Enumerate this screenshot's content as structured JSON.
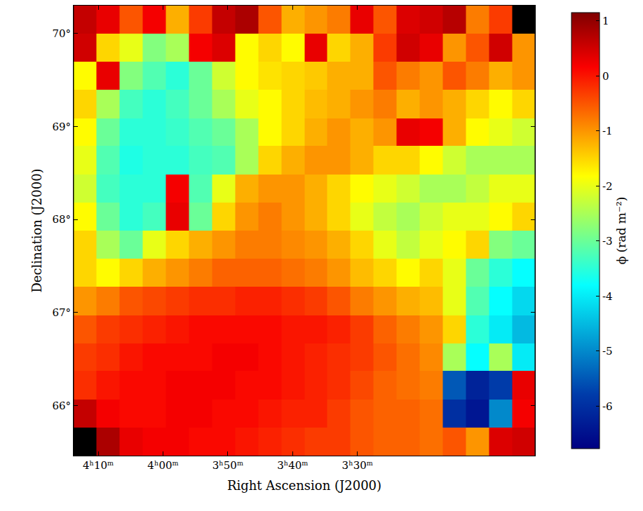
{
  "chart_data": {
    "type": "heatmap",
    "x_label": "Right Ascension (J2000)",
    "y_label": "Declination (J2000)",
    "colorbar_label": "ϕ (rad m⁻²)",
    "x": [
      252.0,
      248.5,
      244.9,
      241.3,
      237.8,
      234.2,
      230.7,
      227.1,
      223.5,
      220.0,
      216.4,
      212.9,
      209.3,
      205.7,
      202.2,
      198.6,
      195.1,
      191.5,
      187.9,
      184.4
    ],
    "y": [
      65.61,
      65.91,
      66.22,
      66.52,
      66.82,
      67.12,
      67.43,
      67.73,
      68.03,
      68.33,
      68.64,
      68.94,
      69.24,
      69.55,
      69.85,
      70.15
    ],
    "z": [
      [
        null,
        0.8,
        0.3,
        0.2,
        0.2,
        0.1,
        0.1,
        0.0,
        -0.1,
        -0.2,
        -0.3,
        -0.3,
        -0.5,
        -0.6,
        -0.6,
        -0.7,
        -0.5,
        -1.0,
        0.4,
        0.5
      ],
      [
        0.6,
        0.2,
        0.1,
        0.1,
        0.2,
        0.2,
        0.1,
        0.1,
        0.0,
        -0.1,
        -0.1,
        -0.3,
        -0.5,
        -0.6,
        -0.6,
        -0.7,
        -6.0,
        -6.4,
        -5.0,
        0.2
      ],
      [
        -0.2,
        0.0,
        0.1,
        0.1,
        0.2,
        0.2,
        0.2,
        0.1,
        0.1,
        0.0,
        -0.1,
        -0.2,
        -0.4,
        -0.6,
        -0.7,
        -0.8,
        -5.5,
        -6.2,
        -5.8,
        0.3
      ],
      [
        -0.3,
        -0.2,
        0.0,
        0.1,
        0.1,
        0.1,
        0.2,
        0.2,
        0.1,
        0.0,
        -0.1,
        -0.2,
        -0.3,
        -0.5,
        -0.7,
        -0.9,
        -2.5,
        -3.8,
        -2.5,
        -4.0
      ],
      [
        -0.5,
        -0.3,
        -0.2,
        -0.1,
        0.0,
        0.1,
        0.1,
        0.1,
        0.1,
        0.0,
        0.0,
        -0.1,
        -0.3,
        -0.6,
        -0.8,
        -1.0,
        -1.5,
        -3.5,
        -4.0,
        -4.5
      ],
      [
        -1.0,
        -0.8,
        -0.5,
        -0.4,
        -0.3,
        -0.2,
        -0.2,
        -0.1,
        -0.1,
        -0.2,
        -0.3,
        -0.5,
        -0.8,
        -1.0,
        -1.2,
        -1.3,
        -2.0,
        -3.2,
        -3.8,
        -4.2
      ],
      [
        -1.5,
        -1.8,
        -1.5,
        -1.2,
        -1.0,
        -0.8,
        -0.6,
        -0.6,
        -0.6,
        -0.7,
        -0.8,
        -1.0,
        -1.3,
        -1.5,
        -1.8,
        -1.5,
        -2.0,
        -3.0,
        -3.5,
        -3.8
      ],
      [
        -1.5,
        -2.5,
        -3.0,
        -2.0,
        -1.5,
        -1.2,
        -1.0,
        -0.8,
        -0.8,
        -0.9,
        -1.0,
        -1.2,
        -1.5,
        -2.0,
        -2.3,
        -2.0,
        -1.8,
        -1.5,
        -2.8,
        -3.0
      ],
      [
        -1.8,
        -3.0,
        -3.5,
        -3.3,
        0.3,
        -3.0,
        -1.5,
        -1.0,
        -0.8,
        -1.0,
        -1.2,
        -1.5,
        -2.0,
        -2.3,
        -2.5,
        -2.2,
        -2.0,
        -2.0,
        -1.8,
        -1.5
      ],
      [
        -2.2,
        -3.3,
        -3.5,
        -3.5,
        0.2,
        -3.2,
        -2.0,
        -1.2,
        -1.0,
        -1.0,
        -1.2,
        -1.5,
        -1.8,
        -2.0,
        -2.2,
        -2.5,
        -2.5,
        -2.3,
        -2.0,
        -2.0
      ],
      [
        -2.0,
        -3.2,
        -3.6,
        -3.5,
        -3.5,
        -3.3,
        -3.2,
        -2.5,
        -1.5,
        -1.2,
        -1.0,
        -1.0,
        -1.2,
        -1.5,
        -1.5,
        -1.8,
        -2.2,
        -2.5,
        -2.5,
        -2.5
      ],
      [
        -1.8,
        -3.0,
        -3.5,
        -3.5,
        -3.4,
        -3.2,
        -3.0,
        -2.5,
        -1.8,
        -1.5,
        -1.2,
        -1.0,
        -1.2,
        -1.0,
        0.3,
        0.2,
        -1.2,
        -1.8,
        -2.0,
        -2.2
      ],
      [
        -1.5,
        -2.5,
        -3.3,
        -3.5,
        -3.3,
        -3.0,
        -2.5,
        -2.0,
        -1.8,
        -1.5,
        -1.3,
        -1.2,
        -1.0,
        -0.8,
        -1.2,
        -1.0,
        -1.2,
        -1.5,
        -1.8,
        -1.5
      ],
      [
        -1.8,
        0.3,
        -2.8,
        -3.2,
        -3.5,
        -3.0,
        -2.2,
        -1.8,
        -1.6,
        -1.5,
        -1.4,
        -1.2,
        -1.2,
        -0.5,
        -0.8,
        -1.0,
        -0.5,
        -0.8,
        -1.2,
        -1.0
      ],
      [
        0.5,
        -1.5,
        -2.0,
        -2.8,
        -2.5,
        0.2,
        0.4,
        -1.8,
        -1.5,
        -1.8,
        0.3,
        -1.5,
        -1.2,
        -0.3,
        0.5,
        0.3,
        -1.0,
        -0.5,
        0.5,
        -1.0
      ],
      [
        0.6,
        0.3,
        -0.5,
        0.2,
        -1.2,
        -0.3,
        0.6,
        0.8,
        -0.5,
        -1.2,
        -1.0,
        -0.8,
        0.3,
        -0.5,
        0.4,
        0.5,
        0.7,
        -0.8,
        -0.3,
        null
      ]
    ],
    "xlim": [
      253.8,
      182.6
    ],
    "xticks": [
      {
        "value": 250,
        "label": "4ʰ10ᵐ"
      },
      {
        "value": 240,
        "label": "4ʰ00ᵐ"
      },
      {
        "value": 230,
        "label": "3ʰ50ᵐ"
      },
      {
        "value": 220,
        "label": "3ʰ40ᵐ"
      },
      {
        "value": 210,
        "label": "3ʰ30ᵐ"
      }
    ],
    "ylim": [
      65.46,
      70.3
    ],
    "yticks": [
      {
        "value": 66,
        "label": "66°"
      },
      {
        "value": 67,
        "label": "67°"
      },
      {
        "value": 68,
        "label": "68°"
      },
      {
        "value": 69,
        "label": "69°"
      },
      {
        "value": 70,
        "label": "70°"
      }
    ],
    "zlim": [
      -6.77,
      1.15
    ],
    "zticks": [
      -6,
      -5,
      -4,
      -3,
      -2,
      -1,
      0,
      1
    ]
  }
}
